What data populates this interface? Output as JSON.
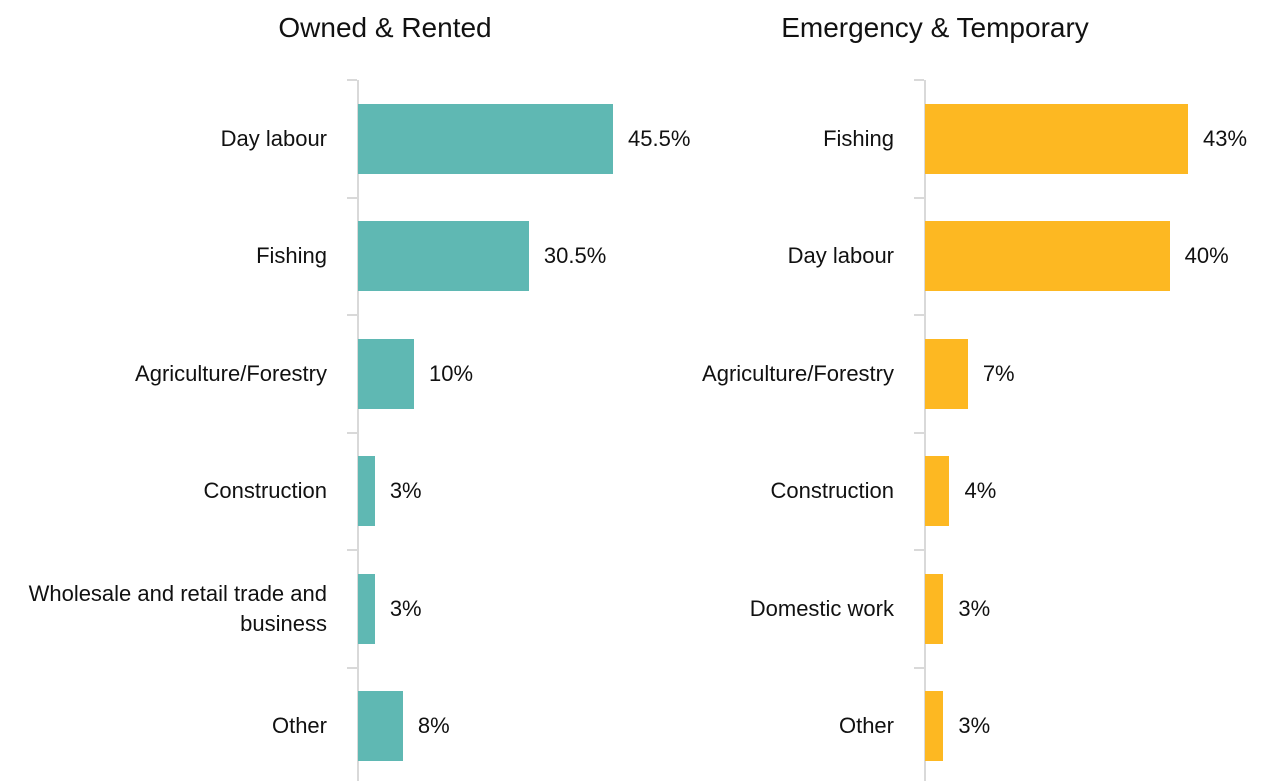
{
  "chart_data": [
    {
      "type": "bar",
      "title": "Owned & Rented",
      "categories": [
        "Day labour",
        "Fishing",
        "Agriculture/Forestry",
        "Construction",
        "Wholesale and retail trade and business",
        "Other"
      ],
      "values": [
        45.5,
        30.5,
        10,
        3,
        3,
        8
      ],
      "value_labels": [
        "45.5%",
        "30.5%",
        "10%",
        "3%",
        "3%",
        "8%"
      ],
      "color": "#5fb8b3"
    },
    {
      "type": "bar",
      "title": "Emergency & Temporary",
      "categories": [
        "Fishing",
        "Day labour",
        "Agriculture/Forestry",
        "Construction",
        "Domestic work",
        "Other"
      ],
      "values": [
        43,
        40,
        7,
        4,
        3,
        3
      ],
      "value_labels": [
        "43%",
        "40%",
        "7%",
        "4%",
        "3%",
        "3%"
      ],
      "color": "#fdb822"
    }
  ]
}
